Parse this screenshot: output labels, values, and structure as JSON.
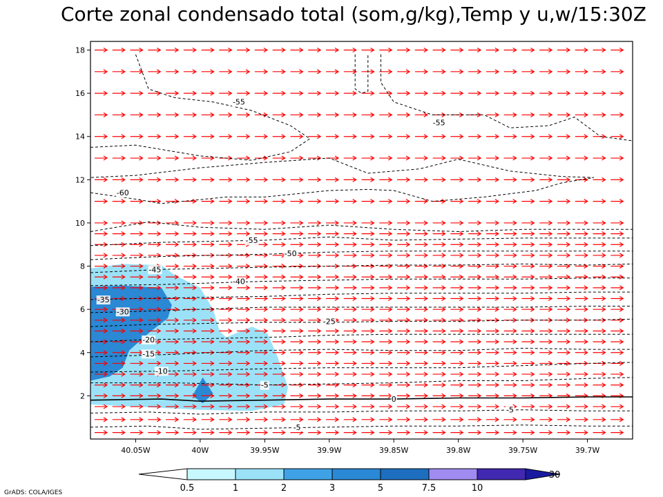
{
  "chart_data": {
    "type": "contour",
    "title": "Corte zonal condensado total (som,g/kg),Temp y u,w/15:30Z",
    "credit": "GrADS: COLA/IGES",
    "x_axis": {
      "range": [
        -40.085,
        -39.665
      ],
      "ticks": [
        -40.05,
        -40.0,
        -39.95,
        -39.9,
        -39.85,
        -39.8,
        -39.75,
        -39.7
      ],
      "tick_labels": [
        "40.05W",
        "40W",
        "39.95W",
        "39.9W",
        "39.85W",
        "39.8W",
        "39.75W",
        "39.7W"
      ]
    },
    "y_axis": {
      "range": [
        0,
        18.4
      ],
      "ticks": [
        2,
        4,
        6,
        8,
        10,
        12,
        14,
        16,
        18
      ],
      "tick_labels": [
        "2",
        "4",
        "6",
        "8",
        "10",
        "12",
        "14",
        "16",
        "18"
      ]
    },
    "shaded_field": {
      "name": "condensado total",
      "levels": [
        0.5,
        1,
        2,
        3,
        5,
        7.5,
        10
      ],
      "colors": [
        "#c8f8ff",
        "#9be2f8",
        "#3fa2e6",
        "#2a88d4",
        "#1e6ec0",
        "#a08cf0",
        "#4028b0",
        "#1a1aa0"
      ],
      "regions": [
        {
          "level": 0.5,
          "polygon": [
            [
              -40.085,
              1.6
            ],
            [
              -40.085,
              7.9
            ],
            [
              -40.06,
              8.1
            ],
            [
              -40.03,
              8.05
            ],
            [
              -40.02,
              7.6
            ],
            [
              -40.0,
              7.0
            ],
            [
              -39.99,
              6.0
            ],
            [
              -39.985,
              5.0
            ],
            [
              -39.98,
              4.7
            ],
            [
              -39.96,
              5.2
            ],
            [
              -39.948,
              4.9
            ],
            [
              -39.94,
              3.8
            ],
            [
              -39.932,
              2.4
            ],
            [
              -39.935,
              1.6
            ],
            [
              -39.96,
              1.3
            ],
            [
              -40.0,
              1.35
            ]
          ]
        },
        {
          "level": 2,
          "polygon": [
            [
              -40.085,
              2.7
            ],
            [
              -40.085,
              7.05
            ],
            [
              -40.06,
              7.1
            ],
            [
              -40.03,
              7.0
            ],
            [
              -40.022,
              6.2
            ],
            [
              -40.025,
              5.6
            ],
            [
              -40.04,
              4.9
            ],
            [
              -40.055,
              4.1
            ],
            [
              -40.06,
              3.3
            ],
            [
              -40.07,
              2.9
            ]
          ]
        },
        {
          "level": 2,
          "polygon": [
            [
              -40.006,
              2.0
            ],
            [
              -39.998,
              2.85
            ],
            [
              -39.99,
              2.1
            ],
            [
              -39.998,
              1.65
            ]
          ]
        }
      ]
    },
    "temperature_contours": [
      {
        "value": -5,
        "label": "-5",
        "points": [
          [
            -40.085,
            0.55
          ],
          [
            -40.04,
            0.6
          ],
          [
            -40.0,
            0.45
          ],
          [
            -39.95,
            0.5
          ],
          [
            -39.9,
            0.55
          ],
          [
            -39.85,
            0.6
          ],
          [
            -39.8,
            0.6
          ],
          [
            -39.75,
            0.65
          ],
          [
            -39.7,
            0.6
          ],
          [
            -39.665,
            0.6
          ]
        ],
        "label_at": [
          -39.925,
          0.55
        ]
      },
      {
        "value": -5,
        "label": "-5",
        "points": [
          [
            -40.085,
            1.2
          ],
          [
            -40.04,
            1.25
          ],
          [
            -40.0,
            1.15
          ],
          [
            -39.95,
            1.25
          ],
          [
            -39.9,
            1.25
          ],
          [
            -39.85,
            1.3
          ],
          [
            -39.8,
            1.3
          ],
          [
            -39.75,
            1.35
          ],
          [
            -39.7,
            1.3
          ],
          [
            -39.665,
            1.3
          ]
        ],
        "label_at": [
          -39.76,
          1.35
        ]
      },
      {
        "value": 0,
        "label": "0",
        "points": [
          [
            -40.085,
            1.8
          ],
          [
            -40.03,
            1.85
          ],
          [
            -40.0,
            1.75
          ],
          [
            -39.95,
            1.8
          ],
          [
            -39.9,
            1.85
          ],
          [
            -39.85,
            1.85
          ],
          [
            -39.8,
            1.9
          ],
          [
            -39.75,
            1.9
          ],
          [
            -39.7,
            1.95
          ],
          [
            -39.665,
            1.95
          ]
        ],
        "label_at": [
          -39.85,
          1.85
        ]
      },
      {
        "value": -5,
        "label": "-5",
        "points": [
          [
            -40.085,
            2.6
          ],
          [
            -40.02,
            2.6
          ],
          [
            -39.95,
            2.5
          ],
          [
            -39.9,
            2.55
          ],
          [
            -39.85,
            2.6
          ],
          [
            -39.8,
            2.7
          ],
          [
            -39.75,
            2.7
          ],
          [
            -39.7,
            2.8
          ],
          [
            -39.665,
            2.85
          ]
        ],
        "label_at": [
          -39.95,
          2.5
        ]
      },
      {
        "value": -10,
        "label": "-10",
        "points": [
          [
            -40.085,
            3.1
          ],
          [
            -40.02,
            3.15
          ],
          [
            -39.95,
            3.25
          ],
          [
            -39.9,
            3.3
          ],
          [
            -39.85,
            3.3
          ],
          [
            -39.8,
            3.3
          ],
          [
            -39.75,
            3.4
          ],
          [
            -39.7,
            3.5
          ],
          [
            -39.665,
            3.55
          ]
        ],
        "label_at": [
          -40.03,
          3.15
        ]
      },
      {
        "value": -15,
        "label": "-15",
        "points": [
          [
            -40.085,
            3.8
          ],
          [
            -40.03,
            3.9
          ],
          [
            -39.95,
            4.1
          ],
          [
            -39.9,
            4.15
          ],
          [
            -39.85,
            4.1
          ],
          [
            -39.8,
            4.1
          ],
          [
            -39.75,
            4.2
          ],
          [
            -39.7,
            4.15
          ],
          [
            -39.665,
            4.15
          ]
        ],
        "label_at": [
          -40.04,
          3.95
        ]
      },
      {
        "value": -20,
        "label": "-20",
        "points": [
          [
            -40.085,
            4.5
          ],
          [
            -40.04,
            4.6
          ],
          [
            -39.95,
            4.7
          ],
          [
            -39.9,
            4.8
          ],
          [
            -39.85,
            4.85
          ],
          [
            -39.8,
            4.85
          ],
          [
            -39.75,
            4.85
          ],
          [
            -39.7,
            4.85
          ],
          [
            -39.665,
            4.85
          ]
        ],
        "label_at": [
          -40.04,
          4.6
        ]
      },
      {
        "value": -25,
        "label": "-25",
        "points": [
          [
            -40.085,
            5.2
          ],
          [
            -40.04,
            5.3
          ],
          [
            -39.95,
            5.4
          ],
          [
            -39.9,
            5.4
          ],
          [
            -39.85,
            5.45
          ],
          [
            -39.8,
            5.45
          ],
          [
            -39.75,
            5.5
          ],
          [
            -39.7,
            5.5
          ],
          [
            -39.665,
            5.55
          ]
        ],
        "label_at": [
          -39.9,
          5.45
        ]
      },
      {
        "value": -30,
        "label": "-30",
        "points": [
          [
            -40.085,
            5.85
          ],
          [
            -40.05,
            5.9
          ],
          [
            -39.95,
            6.1
          ],
          [
            -39.9,
            6.1
          ],
          [
            -39.85,
            6.1
          ],
          [
            -39.8,
            6.1
          ],
          [
            -39.75,
            6.1
          ],
          [
            -39.7,
            6.15
          ],
          [
            -39.665,
            6.15
          ]
        ],
        "label_at": [
          -40.06,
          5.9
        ]
      },
      {
        "value": -35,
        "label": "-35",
        "points": [
          [
            -40.085,
            6.45
          ],
          [
            -40.05,
            6.5
          ],
          [
            -39.95,
            6.6
          ],
          [
            -39.9,
            6.7
          ],
          [
            -39.85,
            6.75
          ],
          [
            -39.8,
            6.75
          ],
          [
            -39.75,
            6.75
          ],
          [
            -39.7,
            6.8
          ],
          [
            -39.665,
            6.8
          ]
        ],
        "label_at": [
          -40.075,
          6.45
        ]
      },
      {
        "value": -40,
        "label": "-40",
        "points": [
          [
            -40.085,
            7.1
          ],
          [
            -40.03,
            7.15
          ],
          [
            -39.95,
            7.3
          ],
          [
            -39.9,
            7.35
          ],
          [
            -39.85,
            7.4
          ],
          [
            -39.8,
            7.4
          ],
          [
            -39.75,
            7.4
          ],
          [
            -39.7,
            7.45
          ],
          [
            -39.665,
            7.45
          ]
        ],
        "label_at": [
          -39.97,
          7.3
        ]
      },
      {
        "value": -45,
        "label": "-45",
        "points": [
          [
            -40.085,
            7.7
          ],
          [
            -40.03,
            7.85
          ],
          [
            -39.95,
            7.95
          ],
          [
            -39.9,
            8.0
          ],
          [
            -39.85,
            8.05
          ],
          [
            -39.8,
            8.05
          ],
          [
            -39.75,
            8.1
          ],
          [
            -39.7,
            8.05
          ],
          [
            -39.665,
            8.1
          ]
        ],
        "label_at": [
          -40.035,
          7.85
        ]
      },
      {
        "value": -50,
        "label": "-50",
        "points": [
          [
            -40.085,
            8.3
          ],
          [
            -40.03,
            8.45
          ],
          [
            -39.95,
            8.55
          ],
          [
            -39.9,
            8.65
          ],
          [
            -39.85,
            8.7
          ],
          [
            -39.8,
            8.7
          ],
          [
            -39.75,
            8.7
          ],
          [
            -39.7,
            8.7
          ],
          [
            -39.665,
            8.7
          ]
        ],
        "label_at": [
          -39.93,
          8.6
        ]
      },
      {
        "value": -55,
        "label": "-55",
        "points": [
          [
            -40.085,
            8.95
          ],
          [
            -40.03,
            9.1
          ],
          [
            -39.95,
            9.2
          ],
          [
            -39.9,
            9.35
          ],
          [
            -39.85,
            9.2
          ],
          [
            -39.8,
            9.25
          ],
          [
            -39.75,
            9.3
          ],
          [
            -39.7,
            9.3
          ],
          [
            -39.665,
            9.3
          ]
        ],
        "label_at": [
          -39.96,
          9.2
        ]
      },
      {
        "value": -60,
        "label": "-60",
        "points": [
          [
            -40.085,
            9.6
          ],
          [
            -40.04,
            10.05
          ],
          [
            -40.0,
            9.8
          ],
          [
            -39.95,
            9.7
          ],
          [
            -39.9,
            9.9
          ],
          [
            -39.85,
            9.7
          ],
          [
            -39.8,
            9.6
          ],
          [
            -39.75,
            9.7
          ],
          [
            -39.7,
            9.7
          ],
          [
            -39.665,
            9.7
          ]
        ],
        "label_at": null
      },
      {
        "value": -60,
        "label": "-60",
        "points": [
          [
            -40.085,
            11.4
          ],
          [
            -40.05,
            11.1
          ],
          [
            -40.03,
            10.9
          ],
          [
            -39.98,
            11.2
          ],
          [
            -39.95,
            11.2
          ],
          [
            -39.9,
            11.5
          ],
          [
            -39.87,
            11.55
          ],
          [
            -39.85,
            11.5
          ],
          [
            -39.82,
            11.0
          ],
          [
            -39.78,
            11.2
          ],
          [
            -39.74,
            11.5
          ],
          [
            -39.72,
            11.85
          ],
          [
            -39.695,
            12.1
          ],
          [
            -39.72,
            12.15
          ],
          [
            -39.76,
            12.4
          ],
          [
            -39.8,
            12.95
          ],
          [
            -39.83,
            12.5
          ],
          [
            -39.87,
            12.3
          ],
          [
            -39.9,
            13.0
          ],
          [
            -39.95,
            12.8
          ],
          [
            -40.0,
            12.55
          ],
          [
            -40.05,
            12.2
          ],
          [
            -40.085,
            12.1
          ]
        ],
        "label_at": [
          -40.06,
          11.4
        ]
      },
      {
        "value": -55,
        "label": "-55",
        "points": [
          [
            -40.085,
            13.5
          ],
          [
            -40.05,
            13.6
          ],
          [
            -40.0,
            13.1
          ],
          [
            -39.96,
            12.9
          ],
          [
            -39.93,
            13.3
          ],
          [
            -39.915,
            13.9
          ],
          [
            -39.93,
            14.5
          ],
          [
            -39.96,
            15.2
          ],
          [
            -39.99,
            15.6
          ],
          [
            -40.02,
            15.8
          ],
          [
            -40.04,
            16.2
          ],
          [
            -40.05,
            17.8
          ]
        ],
        "label_at": [
          -39.97,
          15.6
        ]
      },
      {
        "value": -55,
        "label": "-55",
        "points": [
          [
            -39.88,
            17.8
          ],
          [
            -39.88,
            16.2
          ],
          [
            -39.875,
            16.0
          ],
          [
            -39.87,
            16.1
          ],
          [
            -39.87,
            17.8
          ]
        ],
        "label_at": null
      },
      {
        "value": -55,
        "label": "-55",
        "points": [
          [
            -39.86,
            17.8
          ],
          [
            -39.86,
            16.5
          ],
          [
            -39.85,
            15.6
          ],
          [
            -39.82,
            15.0
          ],
          [
            -39.78,
            15.0
          ],
          [
            -39.76,
            14.4
          ],
          [
            -39.73,
            14.5
          ],
          [
            -39.71,
            14.9
          ],
          [
            -39.69,
            14.0
          ],
          [
            -39.665,
            13.8
          ]
        ],
        "label_at": [
          -39.815,
          14.65
        ]
      }
    ],
    "wind_vectors": {
      "color": "#ff0000",
      "rows_y": [
        0.3,
        0.9,
        1.5,
        2.0,
        2.5,
        3.0,
        3.5,
        4.0,
        4.5,
        5.0,
        5.5,
        6.0,
        6.5,
        7.0,
        7.5,
        8.0,
        8.5,
        9.0,
        9.5,
        10.0,
        11.0,
        12.0,
        13.0,
        14.0,
        15.0,
        16.0,
        17.0,
        18.0
      ],
      "direction": "west-to-east"
    },
    "colorbar": {
      "tick_labels": [
        "0.5",
        "1",
        "2",
        "3",
        "5",
        "7.5",
        "10",
        "30"
      ]
    }
  }
}
